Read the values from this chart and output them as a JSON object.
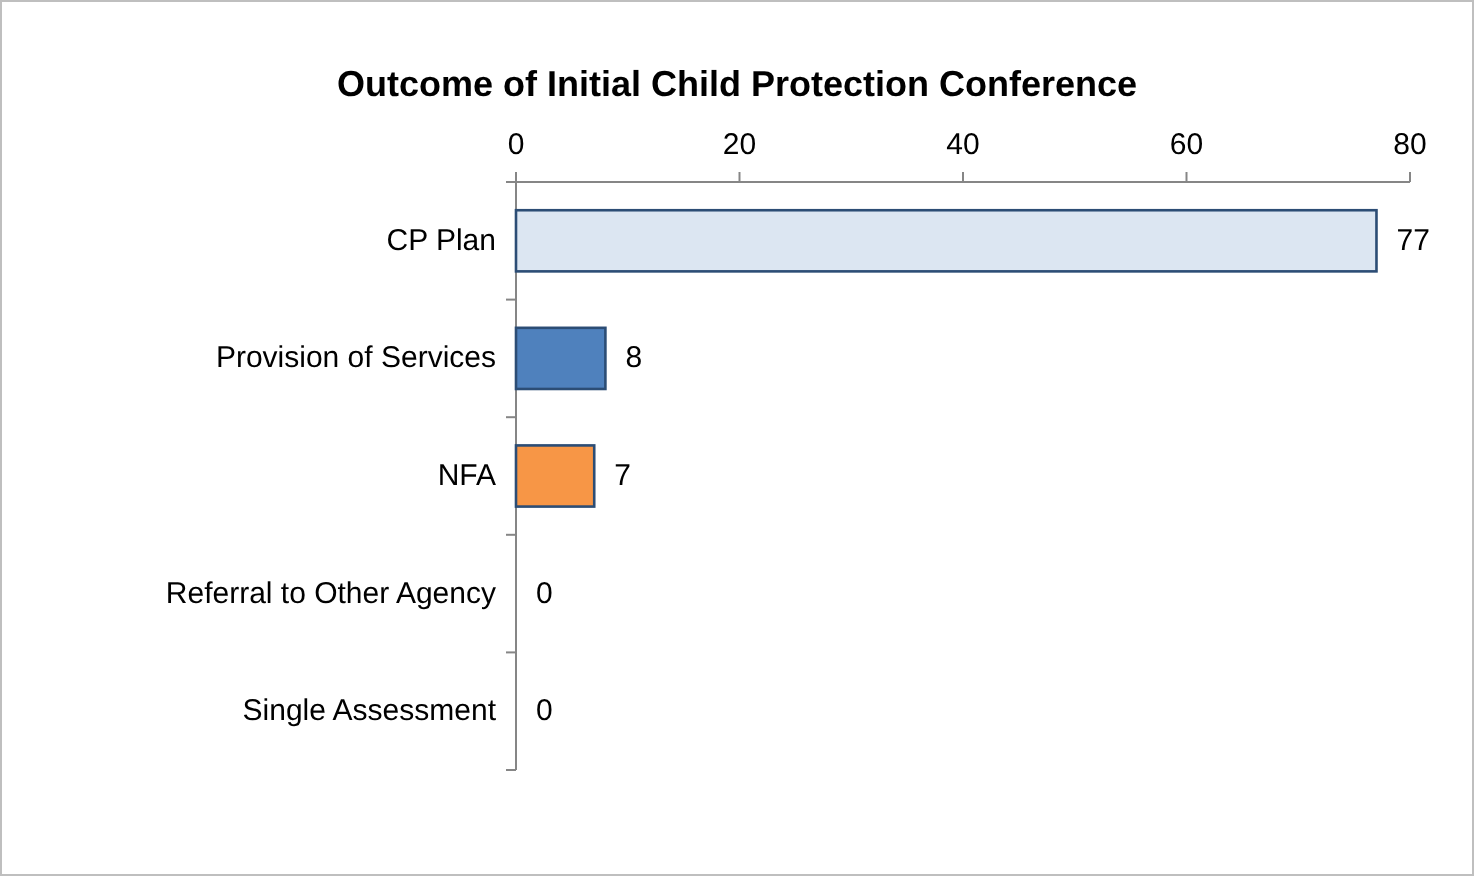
{
  "chart_data": {
    "type": "bar",
    "orientation": "horizontal",
    "title": "Outcome of Initial Child Protection Conference",
    "categories": [
      "CP Plan",
      "Provision of Services",
      "NFA",
      "Referral to Other Agency",
      "Single Assessment"
    ],
    "values": [
      77,
      8,
      7,
      0,
      0
    ],
    "colors": [
      "#dce6f2",
      "#4f81bd",
      "#f79646",
      null,
      null
    ],
    "xlim": [
      0,
      80
    ],
    "xticks": [
      0,
      20,
      40,
      60,
      80
    ],
    "data_labels": true,
    "grid": false
  }
}
